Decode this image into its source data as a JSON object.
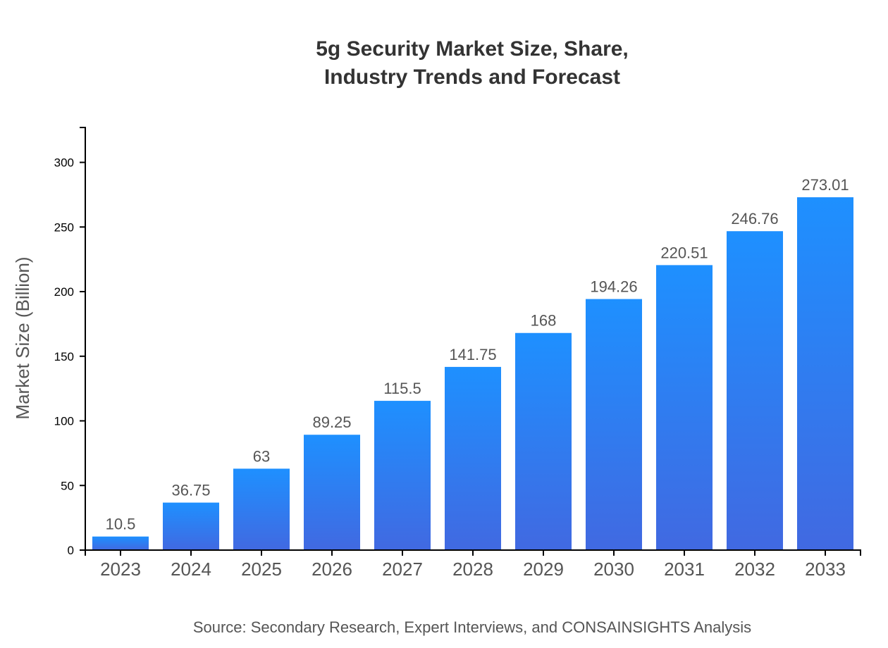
{
  "chart_data": {
    "type": "bar",
    "title_lines": [
      "5g Security Market Size, Share,",
      "Industry Trends and Forecast"
    ],
    "xlabel": "",
    "ylabel": "Market Size (Billion)",
    "categories": [
      "2023",
      "2024",
      "2025",
      "2026",
      "2027",
      "2028",
      "2029",
      "2030",
      "2031",
      "2032",
      "2033"
    ],
    "values": [
      10.5,
      36.75,
      63,
      89.25,
      115.5,
      141.75,
      168,
      194.26,
      220.51,
      246.76,
      273.01
    ],
    "data_labels": [
      "10.5",
      "36.75",
      "63",
      "89.25",
      "115.5",
      "141.75",
      "168",
      "194.26",
      "220.51",
      "246.76",
      "273.01"
    ],
    "yticks": [
      0,
      50,
      100,
      150,
      200,
      250,
      300
    ],
    "ylim": [
      0,
      327
    ],
    "grid": false,
    "legend": "none",
    "colors": {
      "bar_top": "#1e90ff",
      "bar_bottom": "#4169e1",
      "label": "#555555",
      "axis": "#000000"
    },
    "source": "Source: Secondary Research, Expert Interviews, and CONSAINSIGHTS Analysis"
  }
}
